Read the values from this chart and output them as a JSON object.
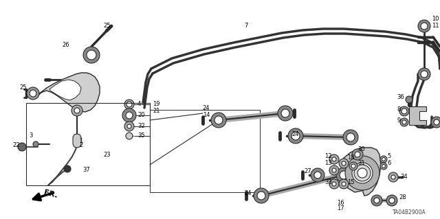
{
  "bg_color": "#ffffff",
  "diagram_code": "TA04B2900A",
  "fig_width": 6.4,
  "fig_height": 3.19,
  "dpi": 100,
  "line_color": "#2a2a2a",
  "label_fontsize": 6.0
}
